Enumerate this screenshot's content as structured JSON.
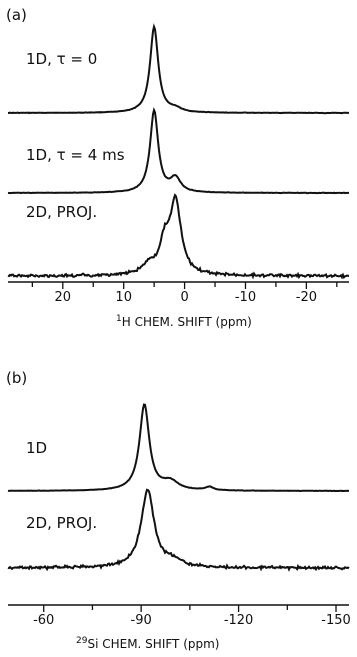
{
  "chart_data": [
    {
      "type": "line",
      "panel_label": "(a)",
      "xlabel_prefix": "1",
      "xlabel_main": "H CHEM. SHIFT (ppm)",
      "x_ticks": [
        20,
        10,
        0,
        -10,
        -20
      ],
      "x_tick_labels": [
        "20",
        "10",
        "0",
        "-10",
        "-20"
      ],
      "xlim": [
        29,
        -27
      ],
      "series": [
        {
          "name": "1D, τ = 0",
          "peaks": [
            {
              "x": 5,
              "height": 1.0,
              "width": 0.8
            },
            {
              "x": 1.5,
              "height": 0.04,
              "width": 1.2
            }
          ]
        },
        {
          "name": "1D, τ = 4 ms",
          "peaks": [
            {
              "x": 5,
              "height": 1.0,
              "width": 0.8
            },
            {
              "x": 1.5,
              "height": 0.17,
              "width": 1.0
            }
          ]
        },
        {
          "name": "2D, PROJ.",
          "peaks": [
            {
              "x": 1.5,
              "height": 0.92,
              "width": 1.1
            },
            {
              "x": 3.3,
              "height": 0.35,
              "width": 0.9
            },
            {
              "x": 5.8,
              "height": 0.12,
              "width": 1.4
            }
          ]
        }
      ]
    },
    {
      "type": "line",
      "panel_label": "(b)",
      "xlabel_prefix": "29",
      "xlabel_main": "Si CHEM. SHIFT (ppm)",
      "x_ticks": [
        -60,
        -90,
        -120,
        -150
      ],
      "x_tick_labels": [
        "-60",
        "-90",
        "-120",
        "-150"
      ],
      "xlim": [
        -49,
        -154
      ],
      "series": [
        {
          "name": "1D",
          "peaks": [
            {
              "x": -91,
              "height": 1.0,
              "width": 1.8
            },
            {
              "x": -99,
              "height": 0.1,
              "width": 3.0
            },
            {
              "x": -111,
              "height": 0.04,
              "width": 1.5
            }
          ]
        },
        {
          "name": "2D, PROJ.",
          "peaks": [
            {
              "x": -92,
              "height": 1.0,
              "width": 2.4
            },
            {
              "x": -100,
              "height": 0.08,
              "width": 3.0
            }
          ]
        }
      ]
    }
  ]
}
